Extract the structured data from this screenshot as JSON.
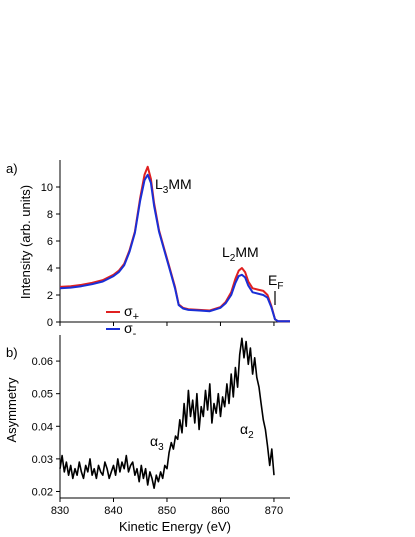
{
  "chart_data": [
    {
      "panel_label": "a)",
      "type": "line",
      "ylabel": "Intensity (arb. units)",
      "xlabel": "",
      "xlim": [
        830,
        873
      ],
      "ylim": [
        0,
        12
      ],
      "yticks": [
        0,
        2,
        4,
        6,
        8,
        10
      ],
      "xticks": [
        830,
        840,
        850,
        860,
        870
      ],
      "annotations": {
        "l3": {
          "main": "L",
          "sub": "3",
          "rest": "MM"
        },
        "l2": {
          "main": "L",
          "sub": "2",
          "rest": "MM"
        },
        "ef": {
          "main": "E",
          "sub": "F"
        }
      },
      "legend": {
        "placement": "bottom-left",
        "entries": [
          {
            "main": "σ",
            "sub": "+",
            "color": "#e02020"
          },
          {
            "main": "σ",
            "sub": "-",
            "color": "#1a2fd6"
          }
        ]
      },
      "series": [
        {
          "color": "#e02020",
          "x": [
            830,
            832,
            834,
            836,
            838,
            840,
            841,
            842,
            843,
            844,
            845,
            845.8,
            846.4,
            847,
            847.6,
            848.5,
            849.5,
            850.5,
            851.5,
            852.2,
            853,
            854,
            856,
            858,
            860,
            861,
            862,
            862.8,
            863.4,
            864,
            864.6,
            865.2,
            866,
            867,
            868,
            868.8,
            869.5,
            870.2,
            870.8,
            873
          ],
          "y": [
            2.6,
            2.65,
            2.75,
            2.9,
            3.1,
            3.5,
            3.8,
            4.3,
            5.3,
            6.7,
            9.2,
            10.9,
            11.5,
            10.6,
            8.8,
            6.8,
            5.4,
            4.0,
            2.6,
            1.3,
            1.05,
            0.95,
            0.9,
            0.85,
            1.1,
            1.5,
            2.2,
            3.2,
            3.8,
            4.0,
            3.7,
            3.0,
            2.5,
            2.4,
            2.3,
            2.0,
            1.2,
            0.2,
            0.05,
            0.05
          ]
        },
        {
          "color": "#1a2fd6",
          "x": [
            830,
            832,
            834,
            836,
            838,
            840,
            841,
            842,
            843,
            844,
            845,
            845.8,
            846.4,
            847,
            847.6,
            848.5,
            849.5,
            850.5,
            851.5,
            852.2,
            853,
            854,
            856,
            858,
            860,
            861,
            862,
            862.8,
            863.4,
            864,
            864.6,
            865.2,
            866,
            867,
            868,
            868.8,
            869.5,
            870.2,
            870.8,
            873
          ],
          "y": [
            2.5,
            2.55,
            2.65,
            2.8,
            3.0,
            3.4,
            3.7,
            4.2,
            5.2,
            6.6,
            9.0,
            10.5,
            10.9,
            10.3,
            8.6,
            6.7,
            5.3,
            3.9,
            2.5,
            1.25,
            1.0,
            0.9,
            0.85,
            0.8,
            1.05,
            1.4,
            2.0,
            2.9,
            3.4,
            3.5,
            3.3,
            2.7,
            2.2,
            2.1,
            2.0,
            1.8,
            1.1,
            0.2,
            0.05,
            0.05
          ]
        }
      ]
    },
    {
      "panel_label": "b)",
      "type": "line",
      "xlabel": "Kinetic Energy (eV)",
      "ylabel": "Asymmetry",
      "xlim": [
        830,
        873
      ],
      "ylim": [
        0.018,
        0.068
      ],
      "xticks": [
        830,
        840,
        850,
        860,
        870
      ],
      "yticks": [
        0.02,
        0.03,
        0.04,
        0.05,
        0.06
      ],
      "ytick_labels": [
        "0.02",
        "0.03",
        "0.04",
        "0.05",
        "0.06"
      ],
      "annotations": {
        "a3": {
          "main": "α",
          "sub": "3"
        },
        "a2": {
          "main": "α",
          "sub": "2"
        }
      },
      "series": [
        {
          "color": "#000000",
          "x": [
            830,
            830.4,
            830.8,
            831.2,
            831.6,
            832,
            832.4,
            832.8,
            833.2,
            833.6,
            834,
            834.4,
            834.8,
            835.2,
            835.6,
            836,
            836.4,
            836.8,
            837.2,
            837.6,
            838,
            838.4,
            838.8,
            839.2,
            839.6,
            840,
            840.4,
            840.8,
            841.2,
            841.6,
            842,
            842.4,
            842.8,
            843.2,
            843.6,
            844,
            844.4,
            844.8,
            845.2,
            845.6,
            846,
            846.4,
            846.8,
            847.2,
            847.6,
            848,
            848.4,
            848.8,
            849.2,
            849.6,
            850,
            850.4,
            850.8,
            851.2,
            851.6,
            852,
            852.4,
            852.8,
            853.2,
            853.6,
            854,
            854.4,
            854.8,
            855.2,
            855.6,
            856,
            856.4,
            856.8,
            857.2,
            857.6,
            858,
            858.4,
            858.8,
            859.2,
            859.6,
            860,
            860.4,
            860.8,
            861.2,
            861.6,
            862,
            862.4,
            862.8,
            863.2,
            863.6,
            864,
            864.4,
            864.8,
            865.2,
            865.6,
            866,
            866.4,
            866.8,
            867.2,
            867.6,
            868,
            868.4,
            868.8,
            869.2,
            869.6,
            870
          ],
          "y": [
            0.027,
            0.031,
            0.026,
            0.029,
            0.025,
            0.028,
            0.024,
            0.027,
            0.025,
            0.029,
            0.026,
            0.024,
            0.028,
            0.026,
            0.03,
            0.025,
            0.027,
            0.024,
            0.028,
            0.026,
            0.025,
            0.029,
            0.027,
            0.024,
            0.026,
            0.028,
            0.025,
            0.03,
            0.026,
            0.029,
            0.027,
            0.031,
            0.026,
            0.028,
            0.029,
            0.025,
            0.027,
            0.023,
            0.028,
            0.024,
            0.027,
            0.022,
            0.026,
            0.024,
            0.021,
            0.025,
            0.023,
            0.026,
            0.024,
            0.028,
            0.027,
            0.032,
            0.035,
            0.033,
            0.037,
            0.036,
            0.042,
            0.038,
            0.047,
            0.04,
            0.051,
            0.043,
            0.048,
            0.041,
            0.05,
            0.039,
            0.046,
            0.043,
            0.051,
            0.045,
            0.053,
            0.041,
            0.047,
            0.044,
            0.05,
            0.043,
            0.049,
            0.046,
            0.053,
            0.047,
            0.056,
            0.049,
            0.058,
            0.052,
            0.062,
            0.067,
            0.061,
            0.066,
            0.059,
            0.064,
            0.056,
            0.061,
            0.055,
            0.052,
            0.047,
            0.042,
            0.039,
            0.034,
            0.028,
            0.033,
            0.025
          ]
        }
      ]
    }
  ]
}
